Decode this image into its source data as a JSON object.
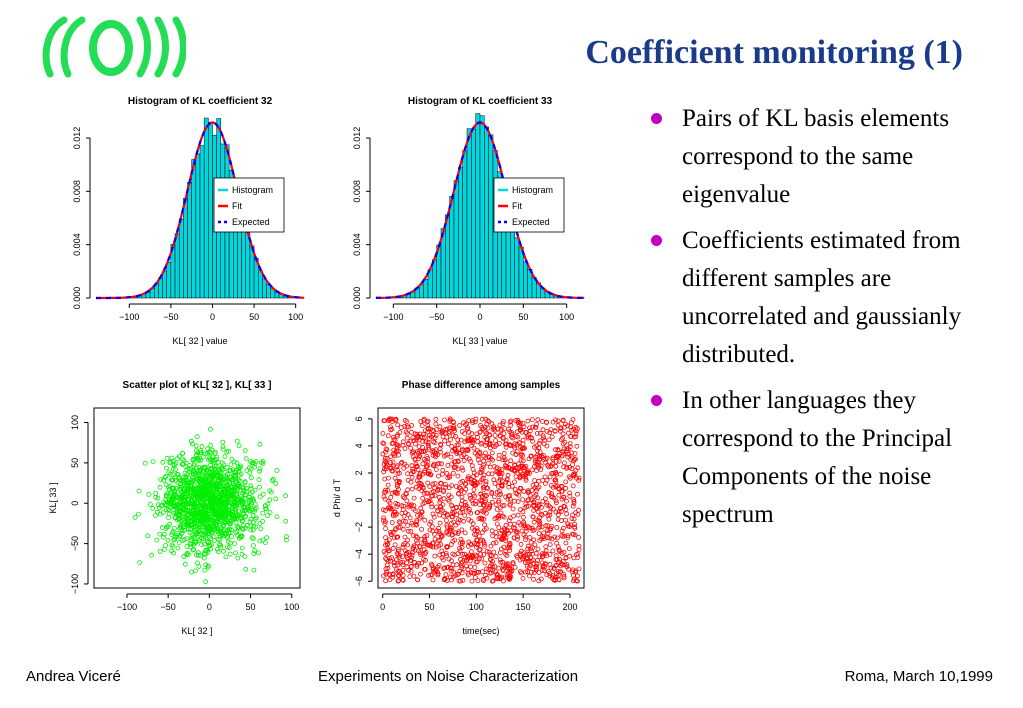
{
  "slide": {
    "title": "Coefficient monitoring (1)",
    "logo_icon": "virgo-logo",
    "accent_color": "#1a3a8a",
    "bullet_color": "#c000c0",
    "bullets": [
      "Pairs of KL basis elements correspond to the same eigenvalue",
      "Coefficients estimated from different samples are uncorrelated and gaussianly distributed.",
      "In other languages they correspond to the Principal Components of the noise spectrum"
    ],
    "footer": {
      "author": "Andrea Viceré",
      "talk": "Experiments on Noise Characterization",
      "place_date": "Roma, March 10,1999"
    }
  },
  "chart_data": [
    {
      "type": "bar",
      "title": "Histogram of KL coefficient  32",
      "xlabel": "KL[ 32 ] value",
      "ylabel": "",
      "xlim": [
        -140,
        110
      ],
      "ylim": [
        0,
        0.0135
      ],
      "xticks": [
        "−100",
        "−50",
        "0",
        "50",
        "100"
      ],
      "yticks": [
        "0.000",
        "0.004",
        "0.008",
        "0.012"
      ],
      "legend": {
        "placement": "right",
        "entries": [
          "Histogram",
          "Fit",
          "Expected"
        ]
      },
      "series": [
        {
          "name": "Histogram",
          "kind": "bar",
          "color": "#00d8e0",
          "mean": 0,
          "sd": 30,
          "bin_width": 5
        },
        {
          "name": "Fit",
          "kind": "line",
          "color": "#ff0000"
        },
        {
          "name": "Expected",
          "kind": "line",
          "color": "#0000ff"
        }
      ]
    },
    {
      "type": "bar",
      "title": "Histogram of KL coefficient  33",
      "xlabel": "KL[ 33 ] value",
      "ylabel": "",
      "xlim": [
        -120,
        120
      ],
      "ylim": [
        0,
        0.0135
      ],
      "xticks": [
        "−100",
        "−50",
        "0",
        "50",
        "100"
      ],
      "yticks": [
        "0.000",
        "0.004",
        "0.008",
        "0.012"
      ],
      "legend": {
        "placement": "right",
        "entries": [
          "Histogram",
          "Fit",
          "Expected"
        ]
      },
      "series": [
        {
          "name": "Histogram",
          "kind": "bar",
          "color": "#00d8e0",
          "mean": 0,
          "sd": 30,
          "bin_width": 5
        },
        {
          "name": "Fit",
          "kind": "line",
          "color": "#ff0000"
        },
        {
          "name": "Expected",
          "kind": "line",
          "color": "#0000ff"
        }
      ]
    },
    {
      "type": "scatter",
      "title": "Scatter plot of KL[ 32 ], KL[ 33 ]",
      "xlabel": "KL[ 32 ]",
      "ylabel": "KL[ 33 ]",
      "xlim": [
        -140,
        110
      ],
      "ylim": [
        -105,
        118
      ],
      "xticks": [
        "−100",
        "−50",
        "0",
        "50",
        "100"
      ],
      "yticks": [
        "−100",
        "−50",
        "0",
        "50",
        "100"
      ],
      "color": "#00ee00",
      "mean": [
        0,
        0
      ],
      "sd": [
        30,
        30
      ],
      "n_points": 1400
    },
    {
      "type": "scatter",
      "title": "Phase difference among samples",
      "xlabel": "time(sec)",
      "ylabel": "d Phi/ d T",
      "xlim": [
        -5,
        215
      ],
      "ylim": [
        -6.5,
        6.8
      ],
      "xticks": [
        "0",
        "50",
        "100",
        "150",
        "200"
      ],
      "yticks": [
        "−6",
        "−4",
        "−2",
        "0",
        "2",
        "4",
        "6"
      ],
      "color": "#ff0000",
      "distribution": "uniform",
      "x_range": [
        0,
        210
      ],
      "y_range": [
        -6,
        6
      ],
      "n_points": 1800
    }
  ]
}
